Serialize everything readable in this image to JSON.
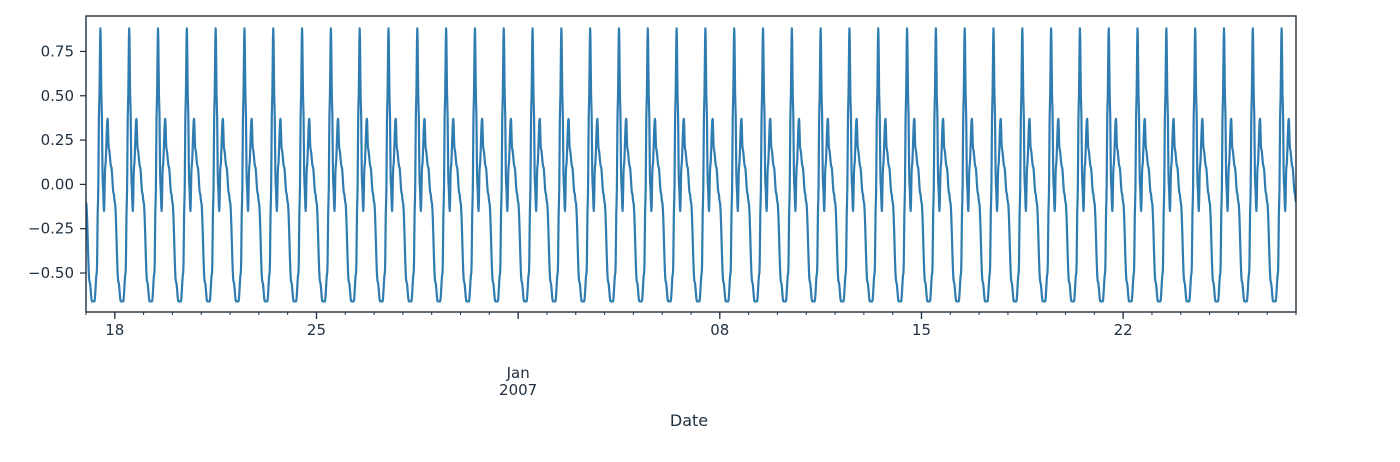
{
  "chart_data": {
    "type": "line",
    "title": "",
    "xlabel": "Date",
    "ylabel": "",
    "x_start": "2006-12-17",
    "x_end": "2007-01-28",
    "xlim": [
      "2006-12-17",
      "2007-01-28"
    ],
    "ylim": [
      -0.72,
      0.95
    ],
    "grid": false,
    "legend": "none",
    "line_color": "#2f7cb0",
    "x_ticks": [
      {
        "date": "2006-12-18",
        "label": "18",
        "major": false
      },
      {
        "date": "2006-12-25",
        "label": "25",
        "major": false
      },
      {
        "date": "2007-01-01",
        "label": "Jan",
        "sublabel": "2007",
        "major": true
      },
      {
        "date": "2007-01-08",
        "label": "08",
        "major": false
      },
      {
        "date": "2007-01-15",
        "label": "15",
        "major": false
      },
      {
        "date": "2007-01-22",
        "label": "22",
        "major": false
      }
    ],
    "y_ticks": [
      -0.5,
      -0.25,
      0.0,
      0.25,
      0.5,
      0.75
    ],
    "y_tick_labels": [
      "−0.50",
      "−0.25",
      "0.00",
      "0.25",
      "0.50",
      "0.75"
    ],
    "series": [
      {
        "period_days": 1,
        "daily_pattern": {
          "hours": [
            0,
            3,
            5,
            7,
            9,
            10,
            11,
            12,
            13,
            14,
            15,
            16,
            18,
            19,
            21,
            23,
            24
          ],
          "values": [
            -0.1,
            -0.55,
            -0.66,
            -0.66,
            -0.5,
            -0.1,
            0.45,
            0.88,
            0.45,
            0.0,
            -0.15,
            0.1,
            0.37,
            0.2,
            0.1,
            -0.05,
            -0.1
          ]
        }
      }
    ]
  }
}
